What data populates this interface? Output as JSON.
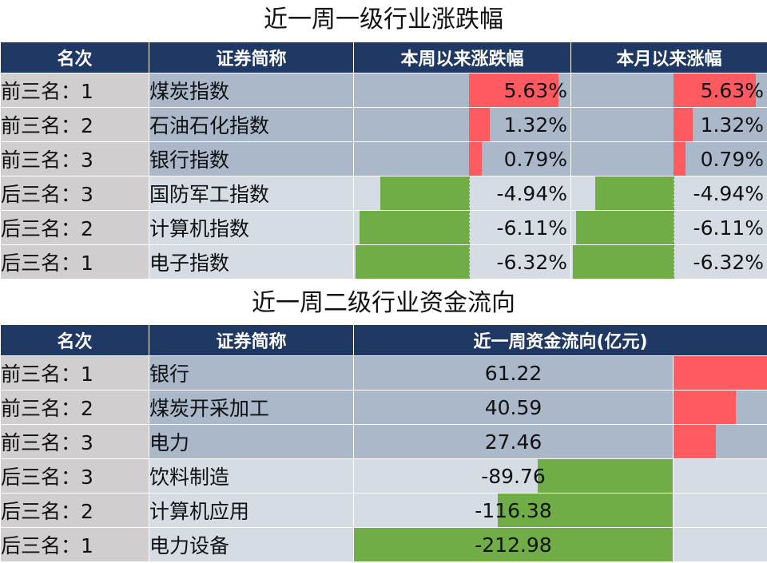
{
  "colors": {
    "header": "#1f3864",
    "positive": "#ff5a5f",
    "negative": "#70ad47"
  },
  "chart_data": [
    {
      "type": "table",
      "title": "近一周一级行业涨跌幅",
      "headers": [
        "名次",
        "证券简称",
        "本周以来涨跌幅",
        "本月以来涨幅"
      ],
      "rows": [
        {
          "rank": "前三名：1",
          "name": "煤炭指数",
          "week": 5.63,
          "month": 5.63,
          "week_text": "5.63%",
          "month_text": "5.63%"
        },
        {
          "rank": "前三名：2",
          "name": "石油石化指数",
          "week": 1.32,
          "month": 1.32,
          "week_text": "1.32%",
          "month_text": "1.32%"
        },
        {
          "rank": "前三名：3",
          "name": "银行指数",
          "week": 0.79,
          "month": 0.79,
          "week_text": "0.79%",
          "month_text": "0.79%"
        },
        {
          "rank": "后三名：3",
          "name": "国防军工指数",
          "week": -4.94,
          "month": -4.94,
          "week_text": "-4.94%",
          "month_text": "-4.94%"
        },
        {
          "rank": "后三名：2",
          "name": "计算机指数",
          "week": -6.11,
          "month": -6.11,
          "week_text": "-6.11%",
          "month_text": "-6.11%"
        },
        {
          "rank": "后三名：1",
          "name": "电子指数",
          "week": -6.32,
          "month": -6.32,
          "week_text": "-6.32%",
          "month_text": "-6.32%"
        }
      ]
    },
    {
      "type": "table",
      "title": "近一周二级行业资金流向",
      "headers": [
        "名次",
        "证券简称",
        "近一周资金流向(亿元)"
      ],
      "rows": [
        {
          "rank": "前三名：1",
          "name": "银行",
          "flow": 61.22,
          "flow_text": "61.22"
        },
        {
          "rank": "前三名：2",
          "name": "煤炭开采加工",
          "flow": 40.59,
          "flow_text": "40.59"
        },
        {
          "rank": "前三名：3",
          "name": "电力",
          "flow": 27.46,
          "flow_text": "27.46"
        },
        {
          "rank": "后三名：3",
          "name": "饮料制造",
          "flow": -89.76,
          "flow_text": "-89.76"
        },
        {
          "rank": "后三名：2",
          "name": "计算机应用",
          "flow": -116.38,
          "flow_text": "-116.38"
        },
        {
          "rank": "后三名：1",
          "name": "电力设备",
          "flow": -212.98,
          "flow_text": "-212.98"
        }
      ]
    }
  ]
}
